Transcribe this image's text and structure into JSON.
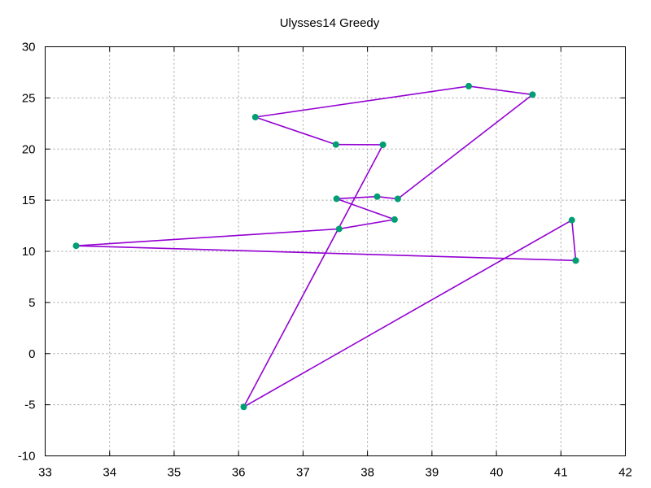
{
  "chart_data": {
    "type": "line",
    "title": "Ulysses14 Greedy",
    "xlim": [
      33,
      42
    ],
    "ylim": [
      -10,
      30
    ],
    "xticks": [
      33,
      34,
      35,
      36,
      37,
      38,
      39,
      40,
      41,
      42
    ],
    "yticks": [
      -10,
      -5,
      0,
      5,
      10,
      15,
      20,
      25,
      30
    ],
    "grid": true,
    "line_color": "#9400d3",
    "marker_color": "#009e73",
    "series": [
      {
        "x": [
          41.23,
          33.48,
          37.56,
          38.42,
          37.52,
          38.15,
          38.47,
          40.56,
          39.57,
          36.26,
          37.51,
          38.24,
          36.08,
          41.17,
          41.23
        ],
        "y": [
          9.1,
          10.54,
          12.19,
          13.11,
          15.14,
          15.35,
          15.13,
          25.32,
          26.15,
          23.12,
          20.44,
          20.42,
          -5.21,
          13.05,
          9.1
        ]
      }
    ]
  }
}
